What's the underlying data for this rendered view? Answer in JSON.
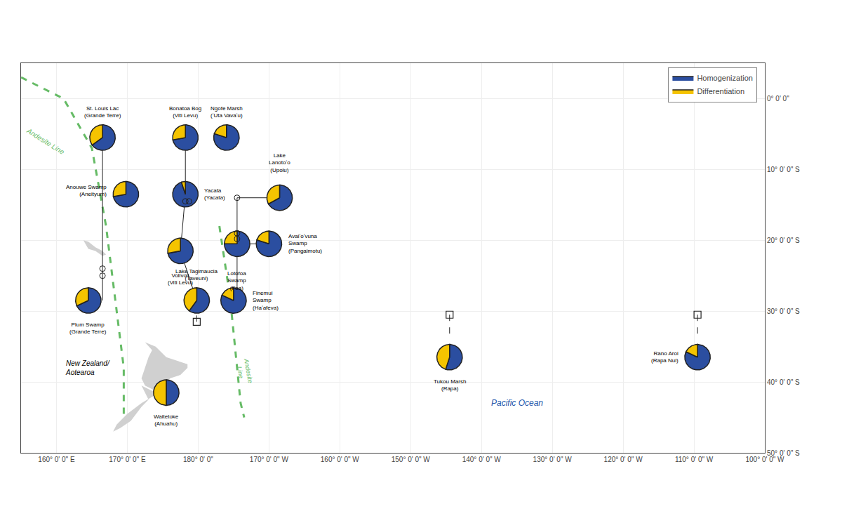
{
  "chart_data": {
    "type": "scatter",
    "xlim": [
      155,
      260
    ],
    "ylim": [
      -50,
      5
    ],
    "xticks": [
      {
        "value": 160,
        "label": "160° 0' 0\" E"
      },
      {
        "value": 170,
        "label": "170° 0' 0\" E"
      },
      {
        "value": 180,
        "label": "180° 0' 0\""
      },
      {
        "value": 190,
        "label": "170° 0' 0\" W"
      },
      {
        "value": 200,
        "label": "160° 0' 0\" W"
      },
      {
        "value": 210,
        "label": "150° 0' 0\" W"
      },
      {
        "value": 220,
        "label": "140° 0' 0\" W"
      },
      {
        "value": 230,
        "label": "130° 0' 0\" W"
      },
      {
        "value": 240,
        "label": "120° 0' 0\" W"
      },
      {
        "value": 250,
        "label": "110° 0' 0\" W"
      },
      {
        "value": 260,
        "label": "100° 0' 0\" W"
      }
    ],
    "yticks": [
      {
        "value": 0,
        "label": "0° 0' 0\""
      },
      {
        "value": -10,
        "label": "10° 0' 0\" S"
      },
      {
        "value": -20,
        "label": "20° 0' 0\" S"
      },
      {
        "value": -30,
        "label": "30° 0' 0\" S"
      },
      {
        "value": -40,
        "label": "40° 0' 0\" S"
      },
      {
        "value": -50,
        "label": "50° 0' 0\" S"
      }
    ],
    "grid": true,
    "legend": "upper right",
    "series": [
      {
        "name": "Homogenization",
        "color": "#2B4EA0"
      },
      {
        "name": "Differentiation",
        "color": "#F5C400"
      }
    ],
    "pie_edge_color": "#222222",
    "sites": [
      {
        "name": "St. Louis Lac\n(Grande Terre)",
        "lon": 166.5,
        "lat": -5.5,
        "values": [
          0.65,
          0.35
        ],
        "label_lon": 166.5,
        "label_lat": -3.0
      },
      {
        "name": "Bonatoa Bog\n(Viti Levu)",
        "lon": 178.2,
        "lat": -5.5,
        "values": [
          0.72,
          0.28
        ],
        "label_lon": 178.2,
        "label_lat": -3.0
      },
      {
        "name": "Ngofe Marsh\n(ʻUta Vavaʻu)",
        "lon": 184.0,
        "lat": -5.5,
        "values": [
          0.8,
          0.2
        ],
        "label_lon": 184.0,
        "label_lat": -3.0
      },
      {
        "name": "Yacata\n(Yacata)",
        "lon": 178.2,
        "lat": -13.5,
        "values": [
          0.95,
          0.05
        ],
        "label_lon": 180.7,
        "label_lat": -13.5
      },
      {
        "name": "Anouwe Swamp\n(Aneityum)",
        "lon": 169.8,
        "lat": -13.5,
        "values": [
          0.72,
          0.28
        ],
        "label_lon": 167.3,
        "label_lat": -13.0
      },
      {
        "name": "Lake\nLanotoʻo\n(Upolu)",
        "lon": 191.5,
        "lat": -14.0,
        "values": [
          0.67,
          0.33
        ],
        "label_lon": 191.5,
        "label_lat": -10.8
      },
      {
        "name": "Volivoli\n(Viti Levu)",
        "lon": 177.5,
        "lat": -21.5,
        "values": [
          0.72,
          0.28
        ],
        "label_lon": 177.5,
        "label_lat": -24.3
      },
      {
        "name": "Lotofoa\nSwamp\n(Foa)",
        "lon": 185.5,
        "lat": -20.5,
        "values": [
          0.75,
          0.25
        ],
        "label_lon": 185.5,
        "label_lat": -24.0
      },
      {
        "name": "Avaiʻoʻvuna\nSwamp\n(Pangaimotu)",
        "lon": 190.0,
        "lat": -20.5,
        "values": [
          0.8,
          0.2
        ],
        "label_lon": 192.5,
        "label_lat": -20.5
      },
      {
        "name": "Plum Swamp\n(Grande Terre)",
        "lon": 164.5,
        "lat": -28.5,
        "values": [
          0.68,
          0.32
        ],
        "label_lon": 164.5,
        "label_lat": -31.3
      },
      {
        "name": "Lake Tagimaucia\n(Taveuni)",
        "lon": 179.8,
        "lat": -28.5,
        "values": [
          0.6,
          0.4
        ],
        "label_lon": 179.8,
        "label_lat": -26.0
      },
      {
        "name": "Finemui\nSwamp\n(Haʻafeva)",
        "lon": 185.0,
        "lat": -28.5,
        "values": [
          0.82,
          0.18
        ],
        "label_lon": 187.5,
        "label_lat": -28.5
      },
      {
        "name": "Tukou Marsh\n(Rapa)",
        "lon": 215.5,
        "lat": -36.5,
        "values": [
          0.55,
          0.45
        ],
        "label_lon": 215.5,
        "label_lat": -39.3
      },
      {
        "name": "Rano Aroi\n(Rapa Nui)",
        "lon": 250.5,
        "lat": -36.5,
        "values": [
          0.82,
          0.18
        ],
        "label_lon": 248.0,
        "label_lat": -36.5
      },
      {
        "name": "Waitetoke\n(Ahuahu)",
        "lon": 175.5,
        "lat": -41.5,
        "values": [
          0.5,
          0.5
        ],
        "label_lon": 175.5,
        "label_lat": -44.3
      }
    ],
    "land": {
      "color": "#d0d0d0",
      "polygons": [
        [
          [
            172.5,
            -34.4
          ],
          [
            174.0,
            -35.0
          ],
          [
            175.5,
            -36.5
          ],
          [
            178.5,
            -37.5
          ],
          [
            178.5,
            -38.0
          ],
          [
            177.5,
            -39.0
          ],
          [
            176.0,
            -39.5
          ],
          [
            175.5,
            -41.0
          ],
          [
            174.5,
            -41.5
          ],
          [
            173.5,
            -41.0
          ],
          [
            172.5,
            -40.5
          ],
          [
            172.0,
            -39.5
          ],
          [
            172.5,
            -38.0
          ],
          [
            173.0,
            -36.5
          ],
          [
            173.5,
            -35.5
          ],
          [
            172.5,
            -34.4
          ]
        ],
        [
          [
            172.0,
            -40.5
          ],
          [
            174.0,
            -41.5
          ],
          [
            174.5,
            -41.5
          ],
          [
            172.0,
            -43.0
          ],
          [
            170.0,
            -44.5
          ],
          [
            168.5,
            -46.0
          ],
          [
            168.0,
            -47.0
          ],
          [
            169.0,
            -46.5
          ],
          [
            170.5,
            -45.5
          ],
          [
            172.0,
            -43.5
          ],
          [
            173.0,
            -42.5
          ],
          [
            172.0,
            -40.5
          ]
        ],
        [
          [
            163.8,
            -20.0
          ],
          [
            164.5,
            -20.2
          ],
          [
            165.5,
            -21.0
          ],
          [
            166.5,
            -21.5
          ],
          [
            167.0,
            -22.0
          ],
          [
            166.5,
            -22.2
          ],
          [
            165.5,
            -21.5
          ],
          [
            164.5,
            -21.2
          ],
          [
            163.8,
            -20.0
          ]
        ]
      ]
    },
    "andesite_lines": {
      "color": "#66BB66",
      "line_style": "dashed",
      "lines": [
        {
          "x": [
            155,
            161,
            165,
            167,
            169.5,
            169.5
          ],
          "y": [
            3,
            0,
            -7,
            -18,
            -38,
            -45
          ]
        },
        {
          "x": [
            183,
            184.5,
            185.5,
            186,
            186.5
          ],
          "y": [
            -18,
            -28,
            -38,
            -43,
            -45
          ]
        }
      ]
    },
    "connections": {
      "color": "#222222",
      "line_style": "solid",
      "segments": [
        [
          166.5,
          -5.5,
          166.5,
          -13.5
        ],
        [
          166.5,
          -13.5,
          166.5,
          -21.5
        ],
        [
          166.5,
          -21.5,
          166.5,
          -28.5
        ],
        [
          178.2,
          -5.5,
          178.2,
          -13.5
        ],
        [
          178.2,
          -13.5,
          177.5,
          -21.5
        ],
        [
          177.5,
          -21.5,
          179.8,
          -28.5
        ],
        [
          191.5,
          -14.0,
          185.5,
          -14.0
        ],
        [
          185.5,
          -14.0,
          185.5,
          -20.5
        ],
        [
          185.5,
          -20.5,
          190.0,
          -20.5
        ],
        [
          185.5,
          -20.5,
          185.5,
          -28.5
        ]
      ]
    },
    "dashed_connectors": {
      "color": "#222222",
      "line_style": "dashed",
      "segments": [
        [
          179.8,
          -31.5,
          179.8,
          -26.5
        ],
        [
          215.5,
          -30.5,
          215.5,
          -34.0
        ],
        [
          250.5,
          -30.5,
          250.5,
          -34.0
        ]
      ]
    },
    "small_circles": {
      "color": "#222222",
      "marker": "circle-open",
      "points": [
        [
          166.5,
          -24.0
        ],
        [
          166.5,
          -25.0
        ],
        [
          178.2,
          -14.5
        ],
        [
          178.7,
          -14.5
        ],
        [
          185.5,
          -19.0
        ],
        [
          185.5,
          -19.8
        ],
        [
          185.5,
          -14.0
        ]
      ]
    },
    "square_markers": {
      "color": "#222222",
      "marker": "square-open",
      "points": [
        [
          179.8,
          -31.5
        ],
        [
          215.5,
          -30.5
        ],
        [
          250.5,
          -30.5
        ]
      ]
    },
    "annotations": [
      {
        "text": "Andesite Line",
        "x": 158.5,
        "y": -6.0,
        "color": "#66BB66"
      },
      {
        "text": "Andesite\nLine",
        "x": 186.5,
        "y": -38.5,
        "color": "#66BB66"
      },
      {
        "text": "New Zealand/\nAotearoa",
        "x": 161.0,
        "y": -38.0
      },
      {
        "text": "Pacific Ocean",
        "x": 225.0,
        "y": -43.0,
        "color": "#2255AA"
      }
    ]
  }
}
